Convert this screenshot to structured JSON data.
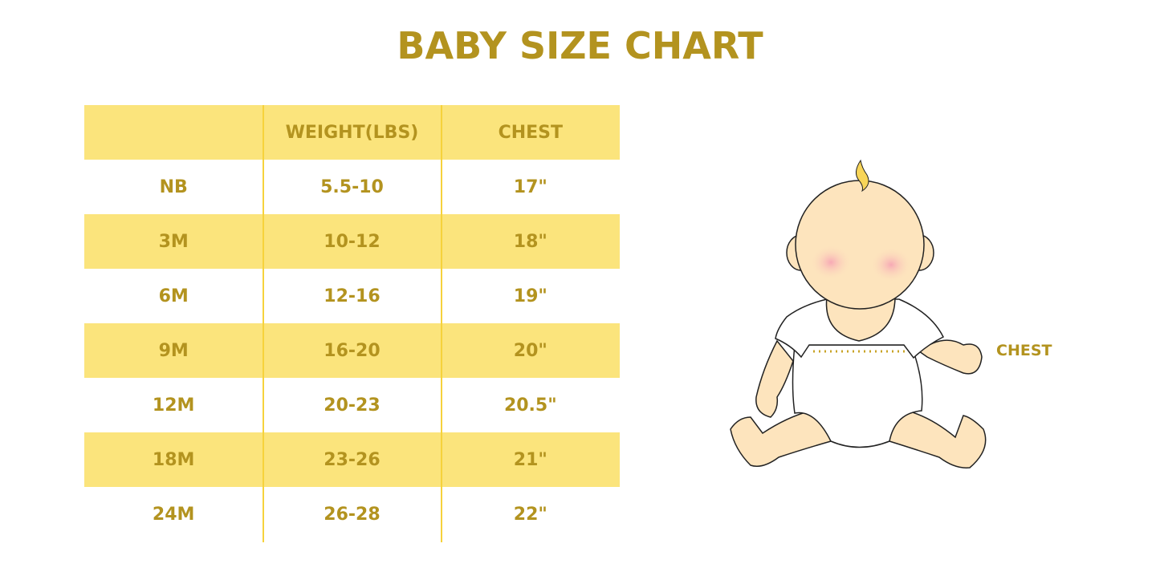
{
  "title": "BABY SIZE CHART",
  "table": {
    "headers": [
      "",
      "WEIGHT(LBS)",
      "CHEST"
    ],
    "rows": [
      [
        "NB",
        "5.5-10",
        "17\""
      ],
      [
        "3M",
        "10-12",
        "18\""
      ],
      [
        "6M",
        "12-16",
        "19\""
      ],
      [
        "9M",
        "16-20",
        "20\""
      ],
      [
        "12M",
        "20-23",
        "20.5\""
      ],
      [
        "18M",
        "23-26",
        "21\""
      ],
      [
        "24M",
        "26-28",
        "22\""
      ]
    ]
  },
  "illustration": {
    "chest_label": "CHEST",
    "icon": "baby-illustration"
  },
  "colors": {
    "text": "#b3931f",
    "band": "#fbe47c",
    "skin": "#fde4bd",
    "divider": "#f6d23c"
  }
}
